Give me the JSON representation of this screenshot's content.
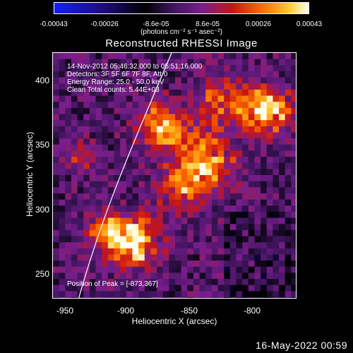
{
  "colorbar": {
    "ticks": [
      "-0.00043",
      "-0.00026",
      "-8.6e-05",
      "8.6e-05",
      "0.00026",
      "0.00043"
    ],
    "units": "(photons cm⁻² s⁻¹ asec⁻²)"
  },
  "title": "Reconstructed RHESSI Image",
  "info": {
    "time_range": "14-Nov-2012 05:46:32.000 to 05:51:16.000",
    "detectors": "Detectors: 3F 5F 6F 7F 8F, Att 0",
    "energy": "Energy Range: 25.0 - 50.0 keV",
    "clean": "Clean     Total counts: 5.44E+03",
    "peak": "Position of Peak = [-873,367]"
  },
  "axes": {
    "xlabel": "Heliocentric X (arcsec)",
    "ylabel": "Heliocentric Y (arcsec)",
    "xticks": [
      "-950",
      "-900",
      "-850",
      "-800"
    ],
    "yticks": [
      "400",
      "350",
      "300",
      "250"
    ],
    "xrange": [
      -960,
      -760
    ],
    "yrange": [
      230,
      430
    ]
  },
  "timestamp": "16-May-2022 00:59"
}
